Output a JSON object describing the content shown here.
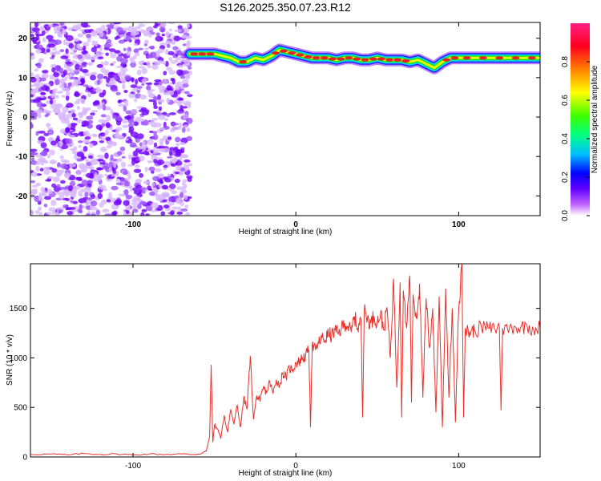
{
  "title": "S126.2025.350.07.23.R12",
  "colors": {
    "snr_line": "#e8302a",
    "scatter_dark": "#7000ff",
    "scatter_light": "#d8b8ff",
    "track_red": "#e8202a",
    "track_green": "#20e020",
    "track_cyan": "#00d8ff",
    "track_blue": "#2020ff"
  },
  "chart_data": [
    {
      "type": "heatmap",
      "name": "spectrogram",
      "xlabel": "Height of straight line (km)",
      "ylabel": "Frequency (Hz)",
      "xlim": [
        -163,
        150
      ],
      "ylim": [
        -25,
        24
      ],
      "x_ticks": [
        -100,
        0,
        100
      ],
      "x_tick_labels": [
        "-100",
        "0",
        "100"
      ],
      "y_ticks": [
        -20,
        -10,
        0,
        10,
        20
      ],
      "y_tick_labels": [
        "-20",
        "-10",
        "0",
        "10",
        "20"
      ],
      "noise_region_x": [
        -163,
        -65
      ],
      "track": {
        "x": [
          -65,
          -60,
          -55,
          -50,
          -45,
          -40,
          -35,
          -30,
          -25,
          -20,
          -15,
          -10,
          -5,
          0,
          5,
          10,
          15,
          20,
          25,
          30,
          35,
          40,
          45,
          50,
          55,
          60,
          65,
          70,
          75,
          80,
          85,
          90,
          95,
          100,
          110,
          120,
          130,
          140,
          150
        ],
        "freq": [
          16,
          16,
          16,
          16,
          15.5,
          15,
          14,
          14,
          15,
          14.5,
          15.5,
          17,
          16.5,
          16,
          15.5,
          15,
          15,
          15,
          14.5,
          15,
          15,
          14.5,
          14.5,
          15,
          14.5,
          14.5,
          14.5,
          14,
          14.5,
          13.5,
          12.5,
          14,
          15,
          15,
          15,
          15,
          15,
          15,
          15
        ],
        "amplitude": [
          0.7,
          0.95,
          0.9,
          0.7,
          0.6,
          0.5,
          0.85,
          0.8,
          0.7,
          0.6,
          0.8,
          0.95,
          0.9,
          0.85,
          0.8,
          0.9,
          0.95,
          0.85,
          0.9,
          0.95,
          0.8,
          0.85,
          0.95,
          0.9,
          0.85,
          0.95,
          0.9,
          0.85,
          0.7,
          0.8,
          0.6,
          0.85,
          0.9,
          0.95,
          0.95,
          0.9,
          0.95,
          0.95,
          0.95
        ]
      },
      "colorbar": {
        "label": "Normalized spectral amplitude",
        "range": [
          0.0,
          1.0
        ],
        "ticks": [
          0.0,
          0.2,
          0.4,
          0.6,
          0.8
        ],
        "tick_labels": [
          "0.0",
          "0.2",
          "0.4",
          "0.6",
          "0.8"
        ],
        "stops": [
          "#ffffff",
          "#c060ff",
          "#6000ff",
          "#0000ff",
          "#00c0ff",
          "#00ff80",
          "#80ff00",
          "#ffff00",
          "#ff8000",
          "#ff0020",
          "#ff2080"
        ]
      },
      "grid": false
    },
    {
      "type": "line",
      "name": "snr",
      "xlabel": "Height of straight line (km)",
      "ylabel": "SNR (10 * v/v)",
      "xlim": [
        -163,
        150
      ],
      "ylim": [
        0,
        1950
      ],
      "x_ticks": [
        -100,
        0,
        100
      ],
      "x_tick_labels": [
        "-100",
        "0",
        "100"
      ],
      "y_ticks": [
        0,
        500,
        1000,
        1500
      ],
      "y_tick_labels": [
        "0",
        "500",
        "1000",
        "1500"
      ],
      "series": [
        {
          "x": [
            -163,
            -150,
            -140,
            -130,
            -120,
            -110,
            -100,
            -90,
            -80,
            -70,
            -62,
            -58,
            -55,
            -53,
            -52,
            -51,
            -50,
            -48,
            -46,
            -44,
            -42,
            -40,
            -38,
            -36,
            -34,
            -32,
            -30,
            -28,
            -26,
            -24,
            -22,
            -20,
            -18,
            -16,
            -14,
            -12,
            -10,
            -8,
            -6,
            -4,
            -2,
            0,
            2,
            4,
            6,
            8,
            9,
            10,
            12,
            14,
            16,
            18,
            20,
            22,
            24,
            26,
            28,
            30,
            32,
            34,
            36,
            38,
            40,
            41,
            42,
            44,
            46,
            48,
            50,
            52,
            54,
            56,
            58,
            60,
            62,
            64,
            65,
            66,
            68,
            70,
            71,
            72,
            74,
            76,
            78,
            80,
            82,
            84,
            86,
            88,
            90,
            92,
            94,
            96,
            98,
            100,
            102,
            103,
            104,
            106,
            108,
            110,
            114,
            118,
            122,
            125,
            126,
            127,
            130,
            134,
            138,
            142,
            146,
            150
          ],
          "y": [
            25,
            30,
            20,
            35,
            25,
            30,
            20,
            30,
            25,
            30,
            25,
            35,
            60,
            200,
            930,
            150,
            320,
            280,
            190,
            420,
            250,
            480,
            330,
            520,
            300,
            600,
            480,
            1020,
            380,
            620,
            560,
            700,
            650,
            760,
            640,
            780,
            720,
            850,
            800,
            900,
            880,
            950,
            960,
            1000,
            1020,
            1080,
            300,
            1120,
            1080,
            1150,
            1200,
            1180,
            1250,
            1220,
            1280,
            1240,
            1300,
            1350,
            1320,
            1260,
            1420,
            1300,
            1380,
            400,
            1470,
            1400,
            1350,
            1420,
            1360,
            1450,
            1280,
            1510,
            1000,
            1800,
            700,
            1760,
            400,
            1680,
            1300,
            1830,
            550,
            1640,
            1400,
            1750,
            600,
            1600,
            1100,
            1500,
            450,
            1620,
            300,
            1700,
            600,
            1500,
            350,
            1480,
            1950,
            400,
            1300,
            1250,
            1280,
            1270,
            1310,
            1300,
            1290,
            1310,
            470,
            1300,
            1290,
            1320,
            1300,
            1330,
            1290,
            1310
          ]
        }
      ],
      "grid": false
    }
  ]
}
